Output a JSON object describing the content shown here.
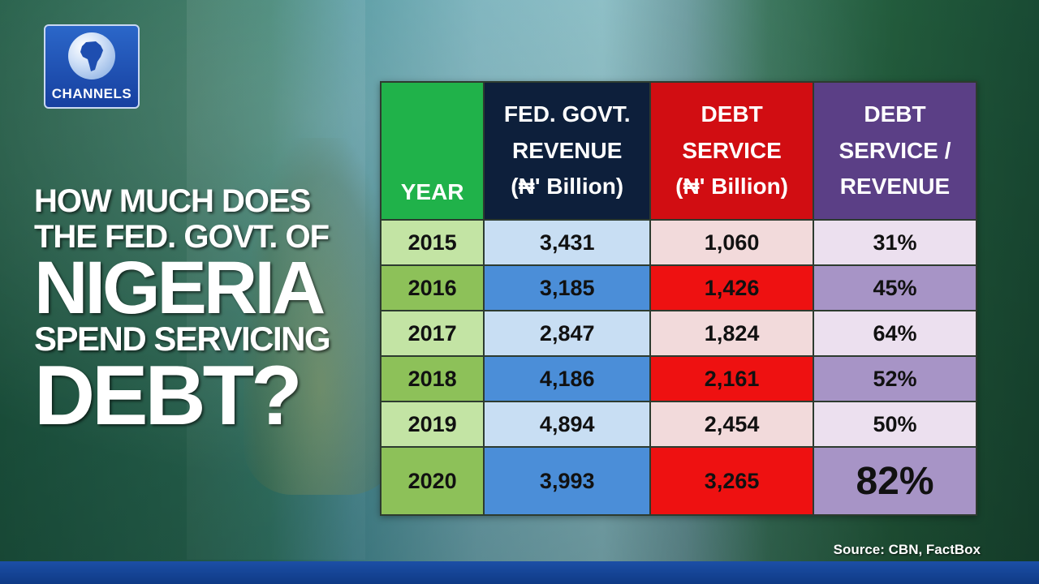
{
  "logo": {
    "text": "CHANNELS"
  },
  "headline": {
    "line1": "HOW MUCH DOES",
    "line2": "THE FED. GOVT. OF",
    "line3": "NIGERIA",
    "line4": "SPEND SERVICING",
    "line5": "DEBT?"
  },
  "table": {
    "headers": {
      "year": "YEAR",
      "revenue": [
        "FED. GOVT.",
        "REVENUE",
        "(₦' Billion)"
      ],
      "debt": [
        "DEBT",
        "SERVICE",
        "(₦' Billion)"
      ],
      "ratio": [
        "DEBT",
        "SERVICE /",
        "REVENUE"
      ]
    },
    "rows": [
      {
        "year": "2015",
        "revenue": "3,431",
        "debt": "1,060",
        "ratio": "31%"
      },
      {
        "year": "2016",
        "revenue": "3,185",
        "debt": "1,426",
        "ratio": "45%"
      },
      {
        "year": "2017",
        "revenue": "2,847",
        "debt": "1,824",
        "ratio": "64%"
      },
      {
        "year": "2018",
        "revenue": "4,186",
        "debt": "2,161",
        "ratio": "52%"
      },
      {
        "year": "2019",
        "revenue": "4,894",
        "debt": "2,454",
        "ratio": "50%"
      },
      {
        "year": "2020",
        "revenue": "3,993",
        "debt": "3,265",
        "ratio": "82%"
      }
    ]
  },
  "source": "Source: CBN, FactBox",
  "colors": {
    "year_header": "#20b24a",
    "revenue_header": "#0d1f3b",
    "debt_header": "#d10d12",
    "ratio_header": "#5b3f86"
  }
}
